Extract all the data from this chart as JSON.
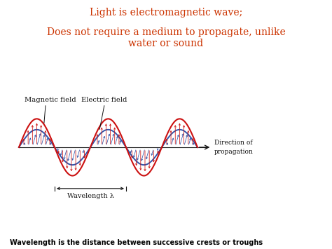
{
  "title_line1": "Light is electromagnetic wave;",
  "title_line2": "Does not require a medium to propagate, unlike\nwater or sound",
  "title_color": "#cc3300",
  "bg_color": "#ffffff",
  "red_color": "#cc1111",
  "blue_color": "#3355aa",
  "black_color": "#111111",
  "label_magnetic": "Magnetic field",
  "label_electric": "Electric field",
  "label_direction": "Direction of\npropagation",
  "label_wavelength": "Wavelength λ",
  "bottom_text": "Wavelength is the distance between successive crests or troughs",
  "wave_amplitude": 1.0,
  "wave_periods": 2.5
}
